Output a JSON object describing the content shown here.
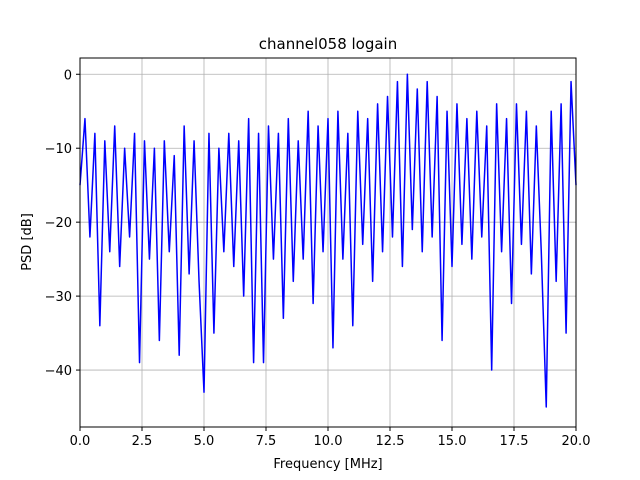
{
  "chart_data": {
    "type": "line",
    "title": "channel058 logain",
    "x_label": "Frequency [MHz]",
    "y_label": "PSD [dB]",
    "x": [
      0.0,
      0.2,
      0.4,
      0.6,
      0.8,
      1.0,
      1.2,
      1.4,
      1.6,
      1.8,
      2.0,
      2.2,
      2.4,
      2.6,
      2.8,
      3.0,
      3.2,
      3.4,
      3.6,
      3.8,
      4.0,
      4.2,
      4.4,
      4.6,
      4.8,
      5.0,
      5.2,
      5.4,
      5.6,
      5.8,
      6.0,
      6.2,
      6.4,
      6.6,
      6.8,
      7.0,
      7.2,
      7.4,
      7.6,
      7.8,
      8.0,
      8.2,
      8.4,
      8.6,
      8.8,
      9.0,
      9.2,
      9.4,
      9.6,
      9.8,
      10.0,
      10.2,
      10.4,
      10.6,
      10.8,
      11.0,
      11.2,
      11.4,
      11.6,
      11.8,
      12.0,
      12.2,
      12.4,
      12.6,
      12.8,
      13.0,
      13.2,
      13.4,
      13.6,
      13.8,
      14.0,
      14.2,
      14.4,
      14.6,
      14.8,
      15.0,
      15.2,
      15.4,
      15.6,
      15.8,
      16.0,
      16.2,
      16.4,
      16.6,
      16.8,
      17.0,
      17.2,
      17.4,
      17.6,
      17.8,
      18.0,
      18.2,
      18.4,
      18.6,
      18.8,
      19.0,
      19.2,
      19.4,
      19.6,
      19.8,
      20.0
    ],
    "series": [
      {
        "name": "PSD",
        "color": "#0000ff",
        "values": [
          -15,
          -6,
          -22,
          -8,
          -34,
          -9,
          -24,
          -7,
          -26,
          -10,
          -22,
          -8,
          -39,
          -9,
          -25,
          -10,
          -36,
          -9,
          -24,
          -11,
          -38,
          -7,
          -27,
          -9,
          -28,
          -43,
          -8,
          -35,
          -10,
          -24,
          -8,
          -26,
          -9,
          -30,
          -6,
          -39,
          -8,
          -39,
          -7,
          -25,
          -8,
          -33,
          -6,
          -28,
          -9,
          -25,
          -5,
          -31,
          -7,
          -24,
          -6,
          -37,
          -5,
          -25,
          -8,
          -34,
          -5,
          -23,
          -6,
          -28,
          -4,
          -24,
          -3,
          -22,
          -1,
          -26,
          0,
          -21,
          -2,
          -24,
          -1,
          -22,
          -3,
          -36,
          -5,
          -26,
          -4,
          -23,
          -6,
          -25,
          -5,
          -22,
          -7,
          -40,
          -4,
          -24,
          -6,
          -31,
          -4,
          -23,
          -5,
          -27,
          -7,
          -24,
          -45,
          -5,
          -28,
          -4,
          -35,
          -1,
          -15
        ]
      }
    ],
    "xlim": [
      0,
      20
    ],
    "ylim": [
      -47.7,
      2.2
    ],
    "xticks": [
      {
        "value": 0,
        "label": "0.0"
      },
      {
        "value": 2.5,
        "label": "2.5"
      },
      {
        "value": 5,
        "label": "5.0"
      },
      {
        "value": 7.5,
        "label": "7.5"
      },
      {
        "value": 10,
        "label": "10.0"
      },
      {
        "value": 12.5,
        "label": "12.5"
      },
      {
        "value": 15,
        "label": "15.0"
      },
      {
        "value": 17.5,
        "label": "17.5"
      },
      {
        "value": 20,
        "label": "20.0"
      }
    ],
    "yticks": [
      {
        "value": -40,
        "label": "−40"
      },
      {
        "value": -30,
        "label": "−30"
      },
      {
        "value": -20,
        "label": "−20"
      },
      {
        "value": -10,
        "label": "−10"
      },
      0
    ],
    "grid": true
  }
}
